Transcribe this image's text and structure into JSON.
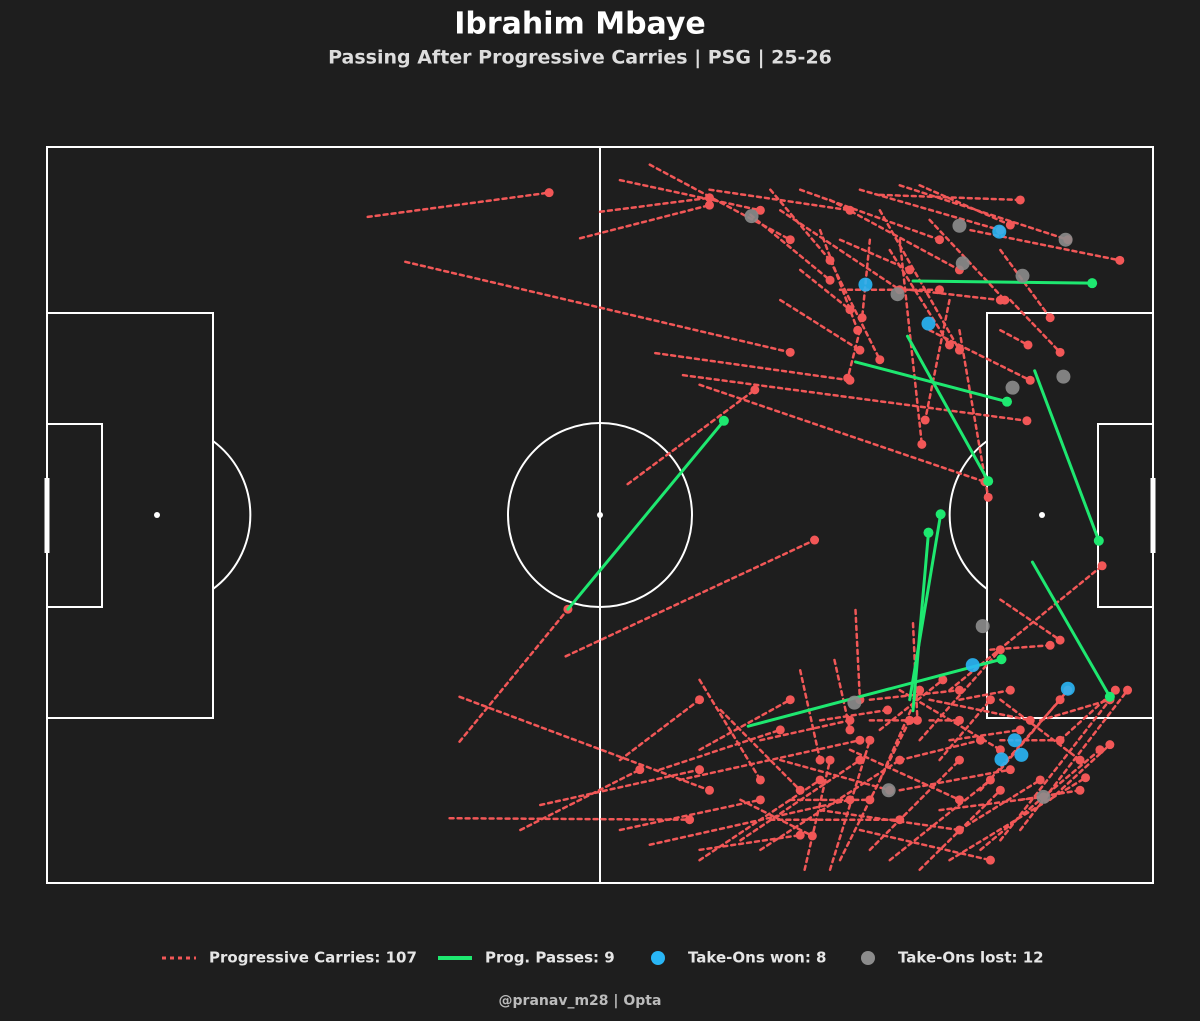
{
  "chart_data": {
    "type": "pitch",
    "title": "Ibrahim Mbaye",
    "subtitle": "Passing After Progressive Carries | PSG | 25-26",
    "credit": "@pranav_m28  |  Opta",
    "xlim": [
      0,
      100
    ],
    "ylim": [
      0,
      100
    ],
    "series": [
      {
        "name": "Progressive Carries: 107",
        "color": "#f25757",
        "mark": "dashed-line",
        "segments": [
          [
            29.0,
            90.5,
            45.4,
            93.8
          ],
          [
            32.4,
            84.4,
            67.2,
            72.1
          ],
          [
            48.2,
            87.6,
            59.9,
            92.1
          ],
          [
            50.0,
            91.2,
            59.9,
            93.1
          ],
          [
            55.0,
            72.0,
            72.6,
            68.3
          ],
          [
            52.5,
            54.2,
            64.0,
            67.0
          ],
          [
            57.5,
            69.0,
            88.6,
            62.8
          ],
          [
            54.5,
            97.6,
            67.2,
            87.4
          ],
          [
            51.8,
            95.5,
            64.5,
            91.4
          ],
          [
            59.9,
            94.2,
            72.6,
            91.4
          ],
          [
            63.6,
            90.8,
            70.8,
            81.9
          ],
          [
            66.3,
            91.4,
            77.1,
            80.6
          ],
          [
            68.1,
            94.2,
            80.7,
            87.4
          ],
          [
            70.8,
            92.8,
            82.5,
            83.3
          ],
          [
            73.5,
            94.2,
            86.2,
            88.7
          ],
          [
            75.3,
            93.5,
            88.0,
            92.8
          ],
          [
            77.1,
            94.8,
            92.3,
            87.4
          ],
          [
            83.5,
            88.7,
            97.0,
            84.6
          ],
          [
            78.9,
            94.8,
            87.1,
            89.4
          ],
          [
            65.4,
            94.2,
            70.8,
            84.6
          ],
          [
            68.1,
            83.3,
            72.6,
            77.9
          ],
          [
            69.9,
            88.7,
            73.3,
            75.1
          ],
          [
            74.4,
            87.4,
            73.7,
            76.8
          ],
          [
            76.2,
            86.0,
            81.6,
            73.1
          ],
          [
            77.1,
            87.4,
            79.1,
            59.6
          ],
          [
            81.6,
            79.2,
            79.4,
            62.9
          ],
          [
            79.8,
            75.1,
            88.9,
            68.3
          ],
          [
            73.5,
            75.1,
            72.4,
            68.6
          ],
          [
            86.2,
            86.0,
            90.7,
            76.8
          ],
          [
            87.1,
            79.2,
            91.6,
            72.1
          ],
          [
            86.2,
            75.1,
            88.7,
            73.1
          ],
          [
            82.5,
            75.1,
            85.1,
            52.4
          ],
          [
            59.0,
            67.7,
            84.8,
            54.5
          ],
          [
            71.7,
            80.6,
            80.7,
            80.6
          ],
          [
            79.8,
            90.1,
            86.6,
            79.2
          ],
          [
            75.3,
            91.4,
            82.5,
            72.4
          ],
          [
            70.8,
            84.6,
            75.3,
            71.1
          ],
          [
            66.3,
            79.2,
            73.5,
            72.4
          ],
          [
            78.0,
            80.6,
            86.2,
            79.2
          ],
          [
            71.7,
            87.4,
            78.0,
            83.3
          ],
          [
            46.9,
            30.8,
            69.4,
            46.6
          ],
          [
            37.3,
            19.2,
            47.1,
            37.2
          ],
          [
            37.3,
            25.3,
            59.9,
            12.6
          ],
          [
            36.4,
            8.8,
            58.1,
            8.6
          ],
          [
            44.6,
            10.6,
            59.0,
            15.4
          ],
          [
            42.8,
            7.2,
            53.6,
            15.4
          ],
          [
            51.8,
            7.2,
            64.5,
            11.3
          ],
          [
            54.5,
            5.2,
            72.6,
            11.3
          ],
          [
            59.0,
            4.5,
            68.1,
            6.5
          ],
          [
            59.0,
            3.1,
            69.9,
            14.0
          ],
          [
            62.7,
            5.8,
            73.5,
            16.7
          ],
          [
            64.5,
            4.5,
            77.1,
            16.7
          ],
          [
            68.5,
            1.8,
            70.8,
            16.7
          ],
          [
            70.8,
            1.8,
            74.4,
            19.4
          ],
          [
            71.7,
            3.1,
            78.0,
            22.1
          ],
          [
            74.4,
            4.5,
            82.5,
            16.7
          ],
          [
            76.2,
            3.1,
            85.3,
            14.0
          ],
          [
            78.9,
            1.8,
            86.2,
            12.6
          ],
          [
            81.6,
            3.1,
            93.9,
            14.3
          ],
          [
            84.4,
            4.5,
            95.2,
            18.1
          ],
          [
            86.2,
            5.8,
            96.1,
            24.9
          ],
          [
            88.0,
            7.2,
            97.7,
            26.2
          ],
          [
            82.5,
            7.2,
            89.8,
            14.0
          ],
          [
            59.0,
            27.6,
            64.5,
            14.0
          ],
          [
            60.9,
            23.5,
            68.1,
            12.6
          ],
          [
            68.1,
            28.9,
            69.9,
            16.7
          ],
          [
            71.2,
            30.3,
            72.6,
            20.8
          ],
          [
            73.1,
            37.1,
            73.5,
            24.9
          ],
          [
            78.3,
            35.3,
            78.7,
            22.1
          ],
          [
            74.4,
            24.9,
            82.5,
            26.2
          ],
          [
            77.1,
            26.2,
            86.2,
            18.1
          ],
          [
            79.8,
            24.9,
            88.9,
            22.1
          ],
          [
            85.3,
            31.7,
            90.7,
            32.3
          ],
          [
            86.2,
            24.9,
            93.4,
            16.7
          ],
          [
            89.8,
            22.1,
            96.1,
            24.9
          ],
          [
            91.6,
            19.4,
            96.6,
            26.2
          ],
          [
            90.7,
            11.3,
            96.1,
            18.8
          ],
          [
            81.6,
            26.2,
            95.4,
            43.1
          ],
          [
            66.3,
            16.7,
            76.2,
            12.6
          ],
          [
            72.6,
            18.1,
            82.5,
            11.3
          ],
          [
            77.1,
            12.6,
            87.1,
            15.4
          ],
          [
            80.7,
            9.9,
            90.1,
            11.7
          ],
          [
            75.3,
            14.0,
            78.9,
            26.2
          ],
          [
            80.7,
            16.7,
            85.3,
            24.9
          ],
          [
            84.4,
            12.6,
            91.6,
            24.9
          ],
          [
            86.2,
            15.4,
            92.3,
            26.2
          ],
          [
            65.4,
            8.6,
            77.1,
            8.6
          ],
          [
            69.9,
            9.9,
            82.5,
            7.2
          ],
          [
            73.5,
            7.2,
            85.3,
            3.1
          ],
          [
            62.7,
            11.3,
            69.2,
            6.4
          ],
          [
            55.4,
            15.4,
            66.3,
            20.8
          ],
          [
            51.8,
            16.7,
            59.0,
            24.9
          ],
          [
            77.1,
            16.7,
            84.4,
            19.4
          ],
          [
            81.6,
            19.4,
            88.0,
            20.8
          ],
          [
            86.2,
            19.4,
            91.6,
            19.4
          ],
          [
            82.5,
            24.9,
            87.1,
            26.2
          ],
          [
            74.4,
            22.1,
            78.0,
            22.1
          ],
          [
            79.8,
            22.1,
            82.5,
            22.1
          ],
          [
            64.5,
            19.4,
            72.6,
            22.1
          ],
          [
            69.9,
            22.1,
            76.0,
            23.5
          ],
          [
            59.0,
            18.1,
            67.2,
            24.9
          ],
          [
            57.2,
            14.0,
            73.5,
            19.4
          ],
          [
            75.3,
            20.8,
            81.0,
            27.6
          ],
          [
            78.9,
            19.4,
            86.2,
            31.7
          ],
          [
            86.2,
            38.5,
            91.6,
            33.0
          ],
          [
            88.0,
            11.3,
            93.4,
            12.6
          ],
          [
            67.2,
            11.3,
            74.4,
            11.3
          ]
        ]
      },
      {
        "name": "Prog. Passes: 9",
        "color": "#1ee870",
        "mark": "line",
        "segments": [
          [
            47.1,
            37.2,
            61.2,
            62.8
          ],
          [
            63.4,
            21.3,
            86.3,
            30.4
          ],
          [
            78.3,
            23.4,
            79.7,
            47.6
          ],
          [
            78.0,
            24.9,
            80.8,
            50.1
          ],
          [
            77.8,
            74.3,
            85.1,
            54.6
          ],
          [
            73.1,
            70.8,
            86.8,
            65.4
          ],
          [
            78.3,
            81.8,
            94.5,
            81.5
          ],
          [
            89.3,
            69.6,
            95.1,
            46.5
          ],
          [
            89.1,
            43.6,
            96.1,
            25.3
          ]
        ]
      },
      {
        "name": "Take-Ons won: 8",
        "color": "#29b6f6",
        "mark": "dot",
        "x": [
          74.0,
          79.7,
          86.1,
          83.7,
          92.3,
          87.5,
          86.3,
          88.1
        ],
        "y": [
          81.3,
          76.0,
          88.5,
          29.6,
          26.4,
          19.4,
          16.8,
          17.4
        ]
      },
      {
        "name": "Take-Ons lost: 12",
        "color": "#8c8c8c",
        "mark": "dot",
        "x": [
          63.7,
          82.5,
          92.1,
          82.8,
          88.2,
          76.9,
          87.3,
          91.9,
          84.6,
          73.0,
          76.1,
          90.1
        ],
        "y": [
          90.6,
          89.3,
          87.4,
          84.2,
          82.5,
          80.0,
          67.3,
          68.8,
          34.9,
          24.5,
          12.6,
          11.7
        ]
      }
    ]
  }
}
